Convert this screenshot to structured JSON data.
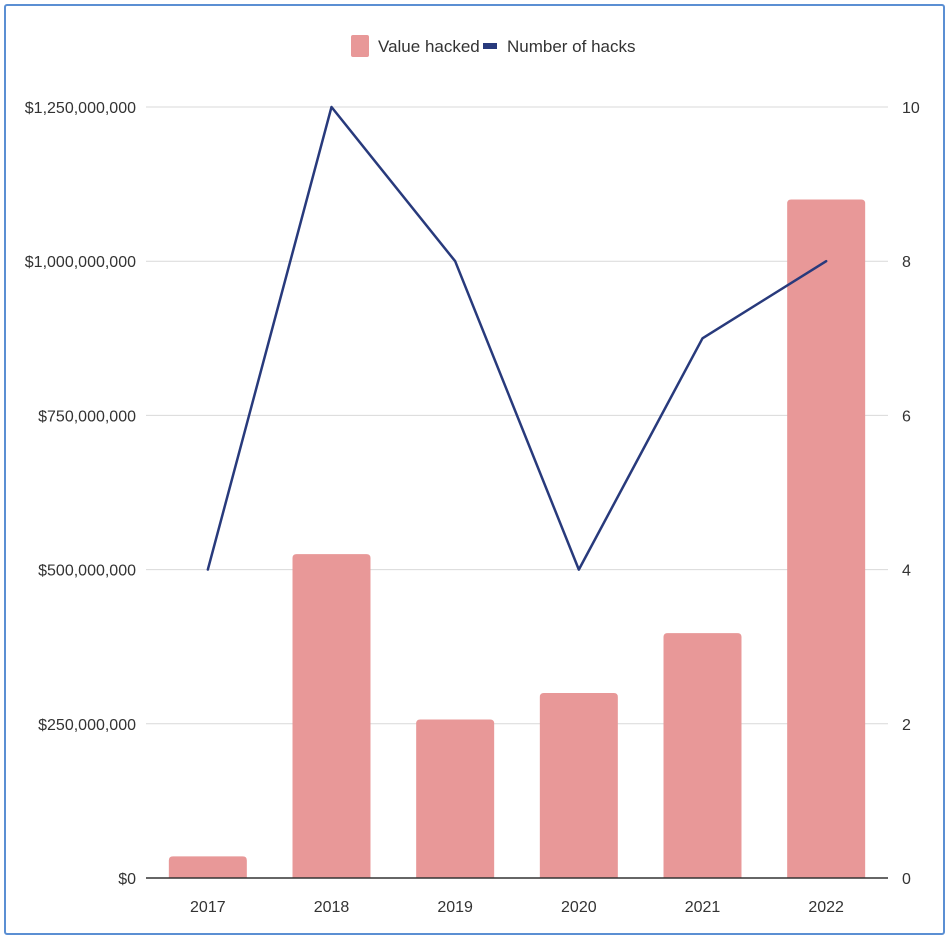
{
  "chart_data": {
    "type": "bar",
    "title": "",
    "xlabel": "",
    "ylabel": "",
    "categories": [
      "2017",
      "2018",
      "2019",
      "2020",
      "2021",
      "2022"
    ],
    "series": [
      {
        "name": "Value hacked",
        "type": "bar",
        "axis": "left",
        "color": "#e89898",
        "values": [
          35000000,
          525000000,
          257000000,
          300000000,
          397000000,
          1100000000
        ]
      },
      {
        "name": "Number of hacks",
        "type": "line",
        "axis": "right",
        "color": "#283a7c",
        "values": [
          4,
          10,
          8,
          4,
          7,
          8
        ]
      }
    ],
    "y_left": {
      "range": [
        0,
        1250000000
      ],
      "ticks": [
        0,
        250000000,
        500000000,
        750000000,
        1000000000,
        1250000000
      ],
      "tick_labels": [
        "$0",
        "$250,000,000",
        "$500,000,000",
        "$750,000,000",
        "$1,000,000,000",
        "$1,250,000,000"
      ]
    },
    "y_right": {
      "range": [
        0,
        10
      ],
      "ticks": [
        0,
        2,
        4,
        6,
        8,
        10
      ],
      "tick_labels": [
        "0",
        "2",
        "4",
        "6",
        "8",
        "10"
      ]
    },
    "grid": true,
    "legend": {
      "position": "top"
    }
  }
}
